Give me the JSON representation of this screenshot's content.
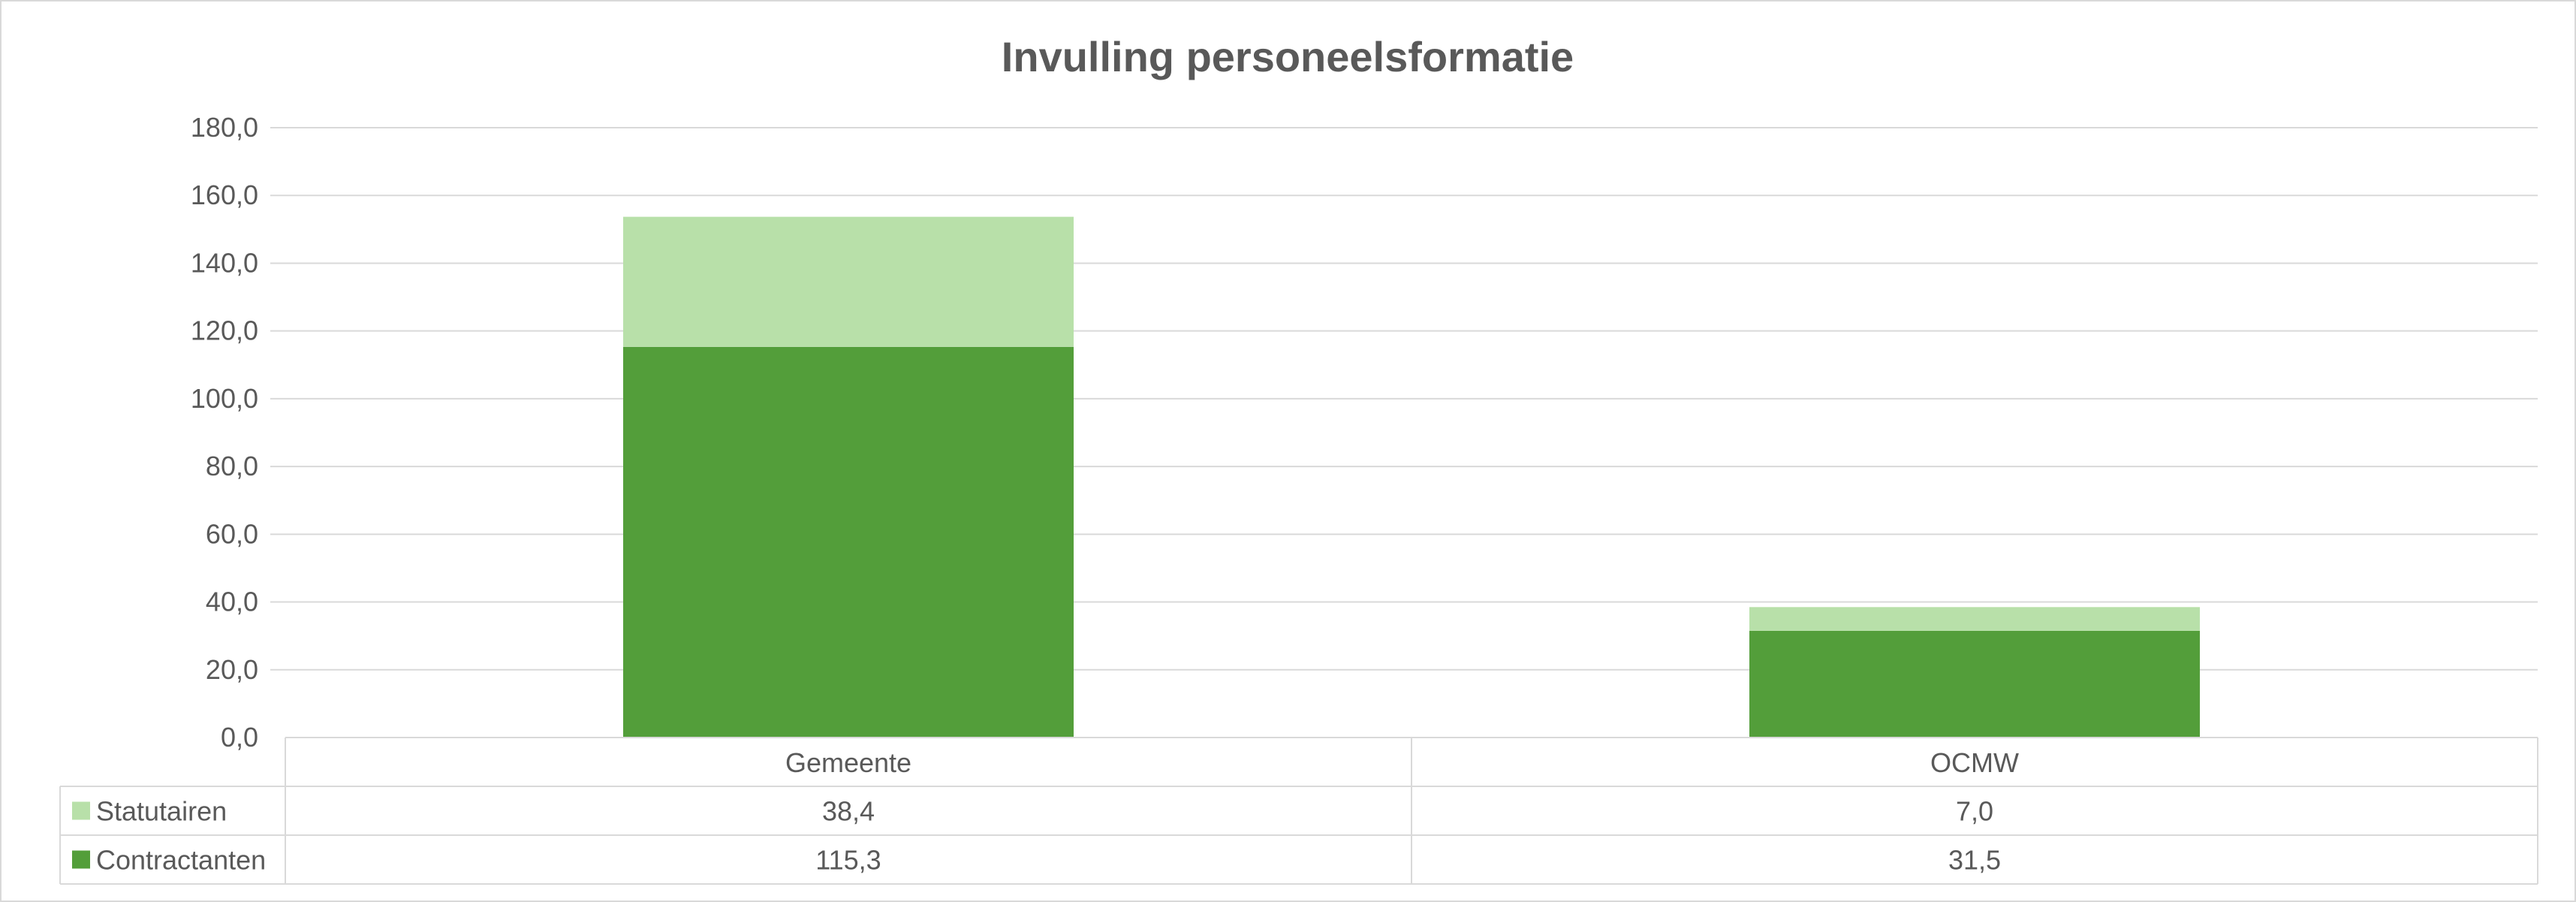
{
  "chart_data": {
    "type": "bar",
    "stacked": true,
    "title": "Invulling personeelsformatie",
    "categories": [
      "Gemeente",
      "OCMW"
    ],
    "series": [
      {
        "name": "Contractanten",
        "values": [
          115.3,
          31.5
        ],
        "value_labels": [
          "115,3",
          "31,5"
        ],
        "color": "#539e3a"
      },
      {
        "name": "Statutairen",
        "values": [
          38.4,
          7.0
        ],
        "value_labels": [
          "38,4",
          "7,0"
        ],
        "color": "#b8e0a9"
      }
    ],
    "ylim": [
      0,
      180
    ],
    "yticks": [
      0,
      20,
      40,
      60,
      80,
      100,
      120,
      140,
      160,
      180
    ],
    "ytick_labels": [
      "0,0",
      "20,0",
      "40,0",
      "60,0",
      "80,0",
      "100,0",
      "120,0",
      "140,0",
      "160,0",
      "180,0"
    ],
    "grid": true,
    "data_table": true,
    "table_row_order": [
      "Statutairen",
      "Contractanten"
    ],
    "xlabel": "",
    "ylabel": ""
  }
}
